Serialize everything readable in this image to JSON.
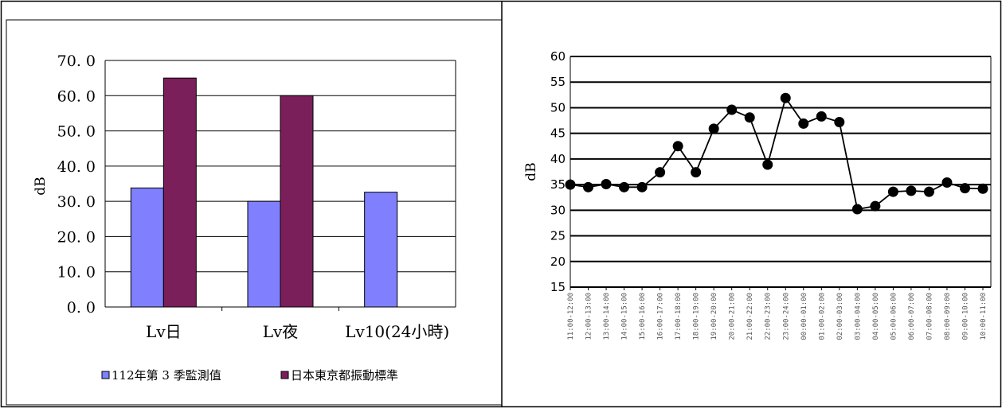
{
  "chart_data": [
    {
      "type": "bar",
      "categories": [
        "Lv日",
        "Lv夜",
        "Lv10(24小時)"
      ],
      "series": [
        {
          "name": "112年第 3 季監測值",
          "values": [
            33.8,
            30.0,
            32.6
          ],
          "color": "#8080ff"
        },
        {
          "name": "日本東京都振動標準",
          "values": [
            65.0,
            60.0,
            null
          ],
          "color": "#7b1f5a"
        }
      ],
      "ylabel": "dB",
      "ylim": [
        0,
        70
      ],
      "yticks": [
        "0. 0",
        "10. 0",
        "20. 0",
        "30. 0",
        "40. 0",
        "50. 0",
        "60. 0",
        "70. 0"
      ],
      "grid": true,
      "legend": "bottom"
    },
    {
      "type": "line",
      "x": [
        "11:00-12:00",
        "12:00-13:00",
        "13:00-14:00",
        "14:00-15:00",
        "15:00-16:00",
        "16:00-17:00",
        "17:00-18:00",
        "18:00-19:00",
        "19:00-20:00",
        "20:00-21:00",
        "21:00-22:00",
        "22:00-23:00",
        "23:00-24:00",
        "00:00-01:00",
        "01:00-02:00",
        "02:00-03:00",
        "03:00-04:00",
        "04:00-05:00",
        "05:00-06:00",
        "06:00-07:00",
        "07:00-08:00",
        "08:00-09:00",
        "09:00-10:00",
        "10:00-11:00"
      ],
      "series": [
        {
          "values": [
            35.0,
            34.5,
            35.1,
            34.5,
            34.5,
            37.4,
            42.5,
            37.4,
            45.9,
            49.6,
            48.1,
            38.9,
            51.9,
            46.9,
            48.3,
            47.2,
            30.2,
            30.8,
            33.6,
            33.8,
            33.6,
            35.4,
            34.3,
            34.2
          ],
          "color": "#000000"
        }
      ],
      "ylabel": "dB",
      "ylim": [
        15,
        60
      ],
      "yticks": [
        "15",
        "20",
        "25",
        "30",
        "35",
        "40",
        "45",
        "50",
        "55",
        "60"
      ],
      "grid": true
    }
  ]
}
